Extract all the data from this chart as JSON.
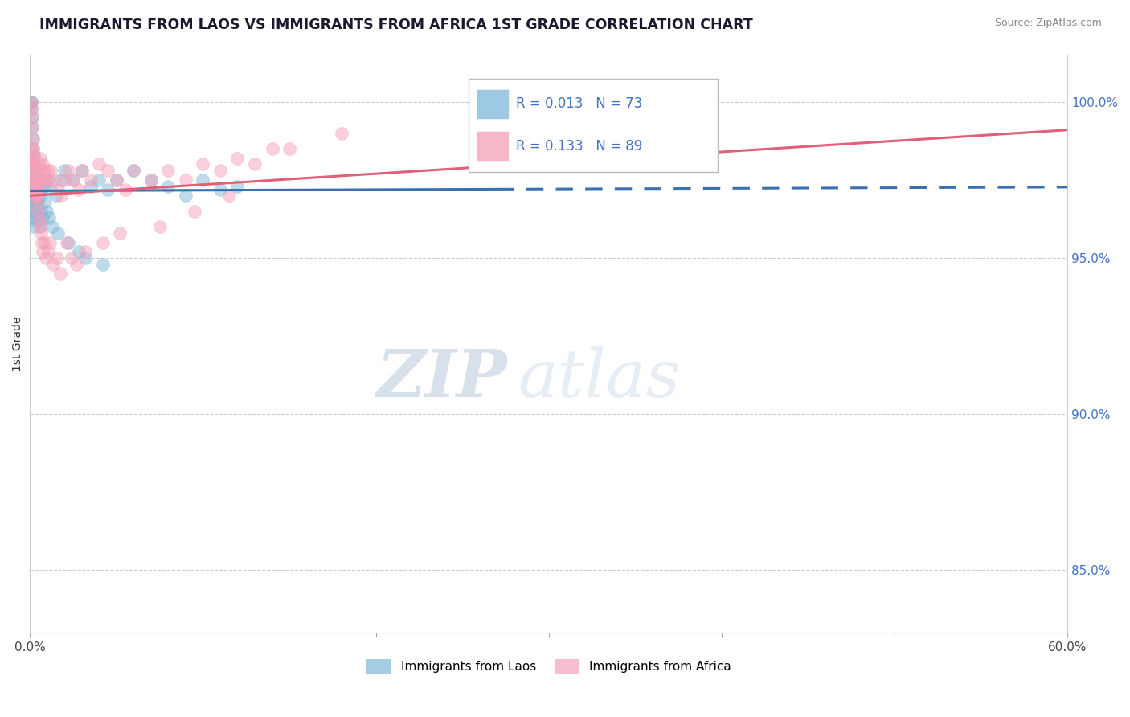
{
  "title": "IMMIGRANTS FROM LAOS VS IMMIGRANTS FROM AFRICA 1ST GRADE CORRELATION CHART",
  "source_text": "Source: ZipAtlas.com",
  "ylabel": "1st Grade",
  "xlim": [
    0.0,
    60.0
  ],
  "ylim": [
    83.0,
    101.5
  ],
  "blue_color": "#7eb8d9",
  "pink_color": "#f4a0b8",
  "blue_line_color": "#3a6fb0",
  "pink_line_color": "#e0607a",
  "legend_R_blue": "0.013",
  "legend_N_blue": "73",
  "legend_R_pink": "0.133",
  "legend_N_pink": "89",
  "legend_label_blue": "Immigrants from Laos",
  "legend_label_pink": "Immigrants from Africa",
  "watermark_zip": "ZIP",
  "watermark_atlas": "atlas",
  "blue_solid_end": 27.0,
  "blue_x": [
    0.05,
    0.08,
    0.1,
    0.12,
    0.12,
    0.15,
    0.15,
    0.18,
    0.2,
    0.2,
    0.22,
    0.25,
    0.25,
    0.28,
    0.3,
    0.3,
    0.32,
    0.35,
    0.38,
    0.4,
    0.42,
    0.45,
    0.5,
    0.55,
    0.6,
    0.7,
    0.8,
    1.0,
    1.2,
    1.5,
    1.8,
    2.0,
    2.5,
    3.0,
    3.5,
    4.0,
    4.5,
    5.0,
    6.0,
    7.0,
    8.0,
    9.0,
    10.0,
    11.0,
    12.0,
    0.05,
    0.07,
    0.09,
    0.11,
    0.13,
    0.16,
    0.19,
    0.21,
    0.24,
    0.27,
    0.33,
    0.36,
    0.39,
    0.43,
    0.47,
    0.52,
    0.58,
    0.65,
    0.75,
    0.85,
    0.95,
    1.1,
    1.3,
    1.6,
    2.2,
    2.8,
    3.2,
    4.2
  ],
  "blue_y": [
    97.8,
    98.0,
    97.5,
    97.2,
    97.0,
    96.8,
    97.2,
    96.5,
    96.3,
    96.0,
    97.8,
    97.5,
    96.2,
    97.0,
    96.8,
    97.3,
    96.5,
    97.0,
    97.5,
    97.2,
    97.0,
    96.8,
    97.5,
    97.2,
    97.0,
    97.5,
    97.3,
    97.5,
    97.2,
    97.0,
    97.5,
    97.8,
    97.5,
    97.8,
    97.3,
    97.5,
    97.2,
    97.5,
    97.8,
    97.5,
    97.3,
    97.0,
    97.5,
    97.2,
    97.3,
    100.0,
    99.8,
    100.0,
    99.5,
    99.2,
    98.8,
    98.5,
    98.3,
    98.0,
    97.8,
    97.5,
    97.2,
    97.0,
    96.8,
    96.5,
    96.2,
    96.0,
    96.5,
    96.3,
    96.8,
    96.5,
    96.3,
    96.0,
    95.8,
    95.5,
    95.2,
    95.0,
    94.8
  ],
  "pink_x": [
    0.05,
    0.08,
    0.1,
    0.12,
    0.15,
    0.15,
    0.18,
    0.2,
    0.22,
    0.25,
    0.25,
    0.28,
    0.3,
    0.32,
    0.35,
    0.38,
    0.4,
    0.42,
    0.45,
    0.5,
    0.55,
    0.6,
    0.65,
    0.7,
    0.75,
    0.8,
    0.9,
    1.0,
    1.1,
    1.2,
    1.4,
    1.6,
    1.8,
    2.0,
    2.2,
    2.5,
    2.8,
    3.0,
    3.5,
    4.0,
    4.5,
    5.0,
    5.5,
    6.0,
    7.0,
    8.0,
    9.0,
    10.0,
    11.0,
    12.0,
    13.0,
    14.0,
    0.07,
    0.09,
    0.11,
    0.13,
    0.16,
    0.19,
    0.21,
    0.24,
    0.27,
    0.33,
    0.36,
    0.39,
    0.43,
    0.47,
    0.52,
    0.58,
    0.62,
    0.68,
    0.72,
    0.82,
    0.92,
    1.05,
    1.15,
    1.35,
    1.55,
    1.75,
    2.1,
    2.4,
    2.7,
    3.2,
    4.2,
    5.2,
    7.5,
    9.5,
    11.5,
    15.0,
    18.0
  ],
  "pink_y": [
    98.2,
    98.5,
    98.0,
    98.3,
    98.0,
    97.8,
    97.5,
    97.8,
    97.2,
    97.5,
    97.0,
    97.3,
    97.5,
    97.0,
    97.2,
    97.5,
    97.8,
    97.0,
    97.2,
    98.0,
    97.5,
    98.2,
    97.8,
    97.5,
    98.0,
    97.8,
    97.5,
    97.8,
    97.5,
    97.8,
    97.5,
    97.2,
    97.0,
    97.5,
    97.8,
    97.5,
    97.2,
    97.8,
    97.5,
    98.0,
    97.8,
    97.5,
    97.2,
    97.8,
    97.5,
    97.8,
    97.5,
    98.0,
    97.8,
    98.2,
    98.0,
    98.5,
    100.0,
    99.8,
    99.5,
    99.2,
    98.8,
    98.5,
    98.3,
    98.0,
    97.8,
    97.5,
    97.2,
    97.0,
    96.8,
    96.5,
    96.2,
    96.0,
    95.8,
    95.5,
    95.2,
    95.5,
    95.0,
    95.2,
    95.5,
    94.8,
    95.0,
    94.5,
    95.5,
    95.0,
    94.8,
    95.2,
    95.5,
    95.8,
    96.0,
    96.5,
    97.0,
    98.5,
    99.0
  ]
}
